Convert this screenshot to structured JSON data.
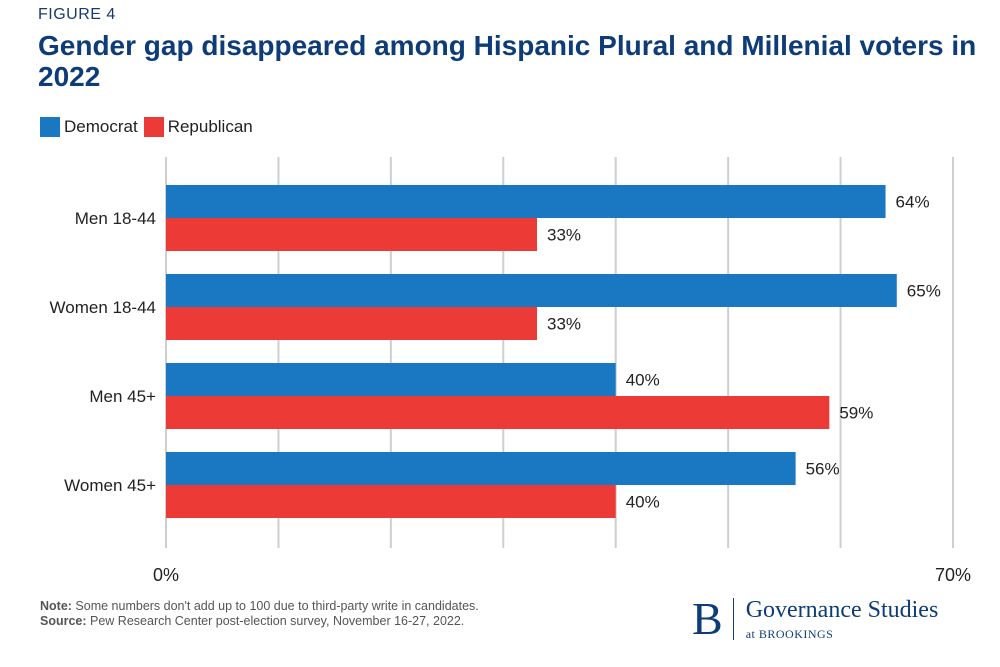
{
  "figure_label": "FIGURE 4",
  "title": "Gender gap disappeared among Hispanic Plural and Millenial voters in 2022",
  "legend": [
    {
      "label": "Democrat",
      "color": "#1a78c2"
    },
    {
      "label": "Republican",
      "color": "#ec3a37"
    }
  ],
  "chart_data": {
    "type": "bar",
    "orientation": "horizontal",
    "categories": [
      "Men 18-44",
      "Women 18-44",
      "Men 45+",
      "Women 45+"
    ],
    "series": [
      {
        "name": "Democrat",
        "color": "#1a78c2",
        "values": [
          64,
          65,
          40,
          56
        ]
      },
      {
        "name": "Republican",
        "color": "#ec3a37",
        "values": [
          33,
          33,
          59,
          40
        ]
      }
    ],
    "value_suffix": "%",
    "xlim": [
      0,
      70
    ],
    "x_tick_labels": [
      "0%",
      "70%"
    ],
    "grid": true,
    "legend_position": "top-left"
  },
  "note_label": "Note:",
  "note_text": " Some numbers don't add up to 100 due to third-party write in candidates.",
  "source_label": "Source:",
  "source_text": " Pew Research Center post-election survey, November 16-27, 2022.",
  "brand": {
    "letter": "B",
    "main": "Governance Studies",
    "sub": "at BROOKINGS"
  }
}
